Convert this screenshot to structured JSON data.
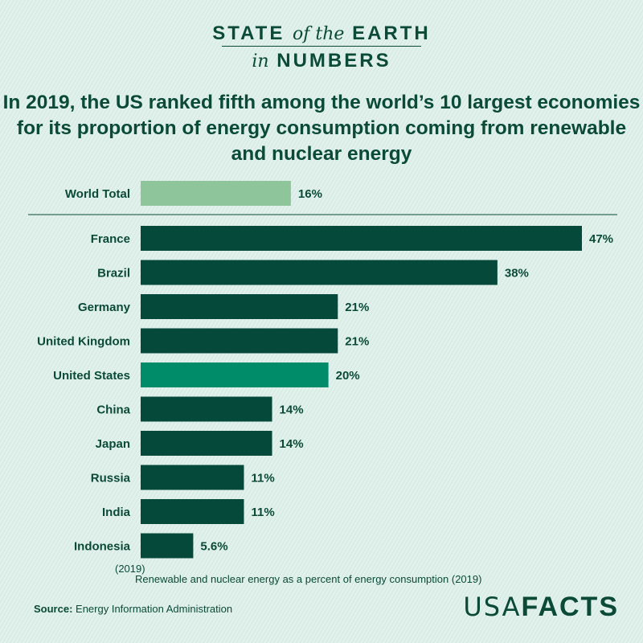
{
  "header": {
    "line1_a": "STATE",
    "line1_b": "of the",
    "line1_c": "EARTH",
    "line2_a": "in",
    "line2_b": "NUMBERS"
  },
  "title": "In 2019, the US ranked fifth among the world’s 10 largest economies for its proportion of energy consumption coming from renewable and nuclear energy",
  "chart_data": {
    "type": "bar",
    "orientation": "horizontal",
    "categories": [
      "World Total",
      "France",
      "Brazil",
      "Germany",
      "United Kingdom",
      "United States",
      "China",
      "Japan",
      "Russia",
      "India",
      "Indonesia"
    ],
    "values": [
      16,
      47,
      38,
      21,
      21,
      20,
      14,
      14,
      11,
      11,
      5.6
    ],
    "data_labels": [
      "16%",
      "47%",
      "38%",
      "21%",
      "21%",
      "20%",
      "14%",
      "14%",
      "11%",
      "11%",
      "5.6%"
    ],
    "xlabel": "Renewable and nuclear energy as a percent of energy consumption (2019)",
    "extra_label": "(2019)",
    "colors": {
      "World Total": "#8fc59a",
      "United States": "#008c69",
      "default": "#04493a"
    },
    "grid": false
  },
  "footer": {
    "source_label": "Source:",
    "source_text": "Energy Information Administration",
    "logo_a": "USA",
    "logo_b": "FACTS"
  }
}
